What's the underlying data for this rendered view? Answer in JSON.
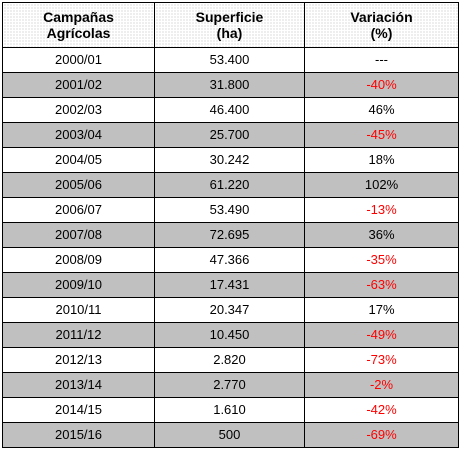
{
  "table": {
    "headers": [
      {
        "line1": "Campañas",
        "line2": "Agrícolas"
      },
      {
        "line1": "Superficie",
        "line2": "(ha)"
      },
      {
        "line1": "Variación",
        "line2": "(%)"
      }
    ],
    "rows": [
      {
        "campaign": "2000/01",
        "surface": "53.400",
        "variation": "---",
        "negative": false
      },
      {
        "campaign": "2001/02",
        "surface": "31.800",
        "variation": "-40%",
        "negative": true
      },
      {
        "campaign": "2002/03",
        "surface": "46.400",
        "variation": "46%",
        "negative": false
      },
      {
        "campaign": "2003/04",
        "surface": "25.700",
        "variation": "-45%",
        "negative": true
      },
      {
        "campaign": "2004/05",
        "surface": "30.242",
        "variation": "18%",
        "negative": false
      },
      {
        "campaign": "2005/06",
        "surface": "61.220",
        "variation": "102%",
        "negative": false
      },
      {
        "campaign": "2006/07",
        "surface": "53.490",
        "variation": "-13%",
        "negative": true
      },
      {
        "campaign": "2007/08",
        "surface": "72.695",
        "variation": "36%",
        "negative": false
      },
      {
        "campaign": "2008/09",
        "surface": "47.366",
        "variation": "-35%",
        "negative": true
      },
      {
        "campaign": "2009/10",
        "surface": "17.431",
        "variation": "-63%",
        "negative": true
      },
      {
        "campaign": "2010/11",
        "surface": "20.347",
        "variation": "17%",
        "negative": false
      },
      {
        "campaign": "2011/12",
        "surface": "10.450",
        "variation": "-49%",
        "negative": true
      },
      {
        "campaign": "2012/13",
        "surface": "2.820",
        "variation": "-73%",
        "negative": true
      },
      {
        "campaign": "2013/14",
        "surface": "2.770",
        "variation": "-2%",
        "negative": true
      },
      {
        "campaign": "2014/15",
        "surface": "1.610",
        "variation": "-42%",
        "negative": true
      },
      {
        "campaign": "2015/16",
        "surface": "500",
        "variation": "-69%",
        "negative": true
      }
    ]
  },
  "colors": {
    "negative_text": "#ff0000",
    "shaded_row": "#c0c0c0",
    "header_dots": "#bfbfbf",
    "border": "#000000"
  }
}
